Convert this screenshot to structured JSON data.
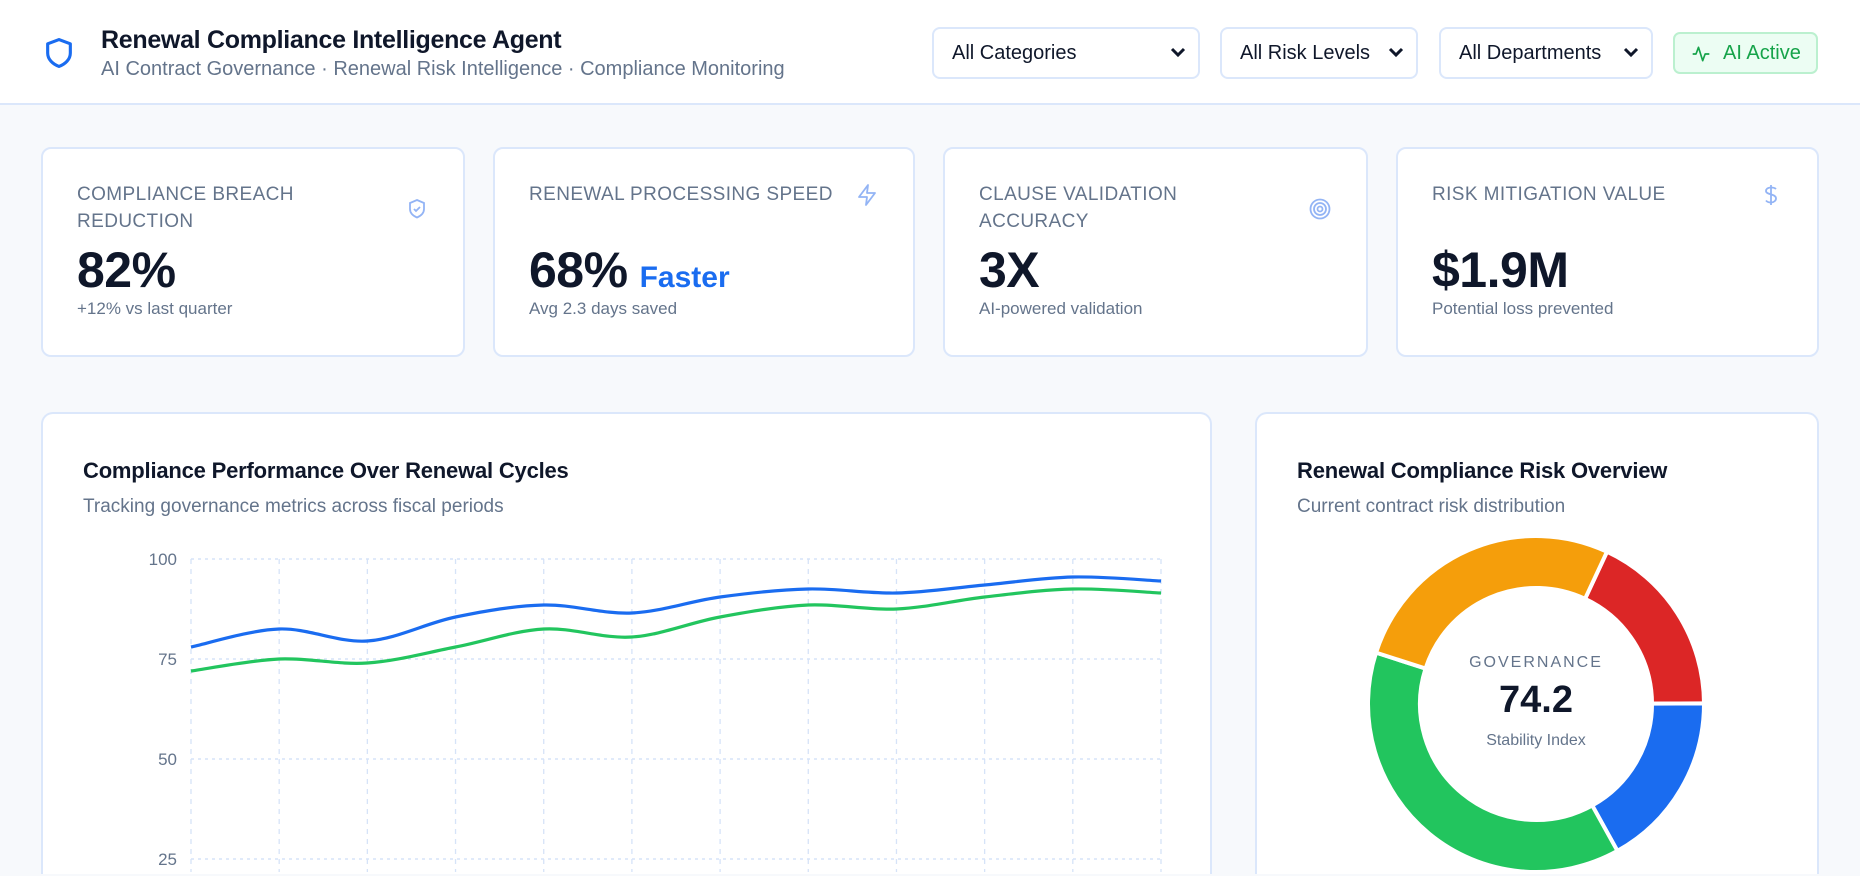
{
  "header": {
    "title": "Renewal Compliance Intelligence Agent",
    "subtitle": "AI Contract Governance · Renewal Risk Intelligence · Compliance Monitoring",
    "logo_icon": "shield-icon",
    "filters": [
      {
        "value": "All Categories"
      },
      {
        "value": "All Risk Levels"
      },
      {
        "value": "All Departments"
      }
    ],
    "status_badge": {
      "label": "AI Active",
      "icon": "activity-icon",
      "color": "#16a34a"
    }
  },
  "kpis": [
    {
      "label": "Compliance Breach Reduction",
      "value": "82%",
      "accent": "",
      "sub": "+12% vs last quarter",
      "icon": "shield-check-icon"
    },
    {
      "label": "Renewal Processing Speed",
      "value": "68%",
      "accent": "Faster",
      "sub": "Avg 2.3 days saved",
      "icon": "lightning-icon"
    },
    {
      "label": "Clause Validation Accuracy",
      "value": "3X",
      "accent": "",
      "sub": "AI-powered validation",
      "icon": "target-icon"
    },
    {
      "label": "Risk Mitigation Value",
      "value": "$1.9M",
      "accent": "",
      "sub": "Potential loss prevented",
      "icon": "dollar-icon"
    }
  ],
  "performance_panel": {
    "title": "Compliance Performance Over Renewal Cycles",
    "subtitle": "Tracking governance metrics across fiscal periods"
  },
  "risk_panel": {
    "title": "Renewal Compliance Risk Overview",
    "subtitle": "Current contract risk distribution",
    "center_kicker": "GOVERNANCE",
    "center_value": "74.2",
    "center_caption": "Stability Index"
  },
  "chart_data": [
    {
      "type": "line",
      "ylim": [
        0,
        100
      ],
      "yticks": [
        "100",
        "75",
        "50",
        "25"
      ],
      "ytick_values": [
        100,
        75,
        50,
        25
      ],
      "grid": true,
      "x_count": 12,
      "series": [
        {
          "color": "#1a6cf0",
          "values": [
            78,
            82.5,
            79.5,
            85.5,
            88.5,
            86.5,
            90.5,
            92.5,
            91.5,
            93.5,
            95.5,
            94.5
          ]
        },
        {
          "color": "#22c55e",
          "values": [
            72,
            75,
            74,
            78,
            82.5,
            80.5,
            85.5,
            88.5,
            87.5,
            90.5,
            92.5,
            91.5
          ]
        }
      ]
    },
    {
      "type": "pie",
      "donut": true,
      "slices": [
        {
          "color": "#dc2626",
          "value": 18
        },
        {
          "color": "#1a6cf0",
          "value": 17
        },
        {
          "color": "#22c55e",
          "value": 38
        },
        {
          "color": "#f59e0b",
          "value": 27
        }
      ]
    }
  ]
}
